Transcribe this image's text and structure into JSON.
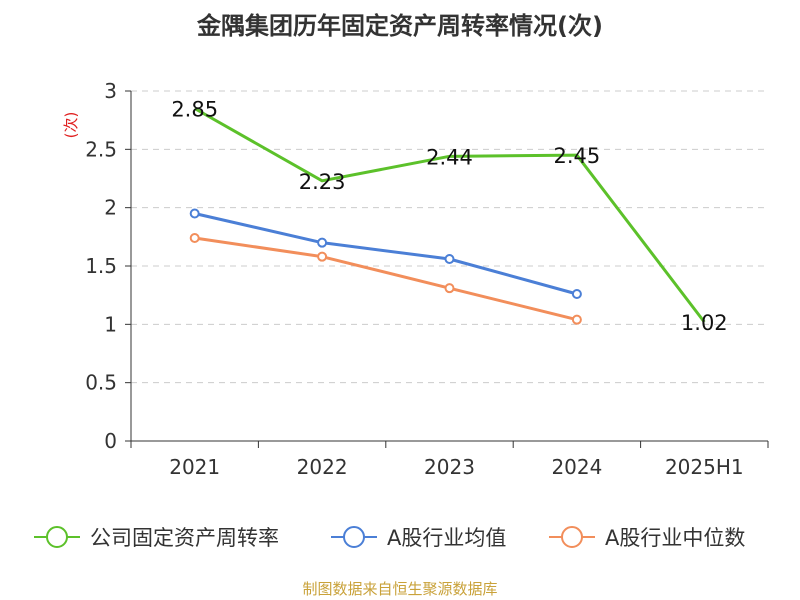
{
  "chart_data": {
    "type": "line",
    "title": "金隅集团历年固定资产周转率情况(次)",
    "ylabel": "(次)",
    "xlabel": "",
    "categories": [
      "2021",
      "2022",
      "2023",
      "2024",
      "2025H1"
    ],
    "ylim": [
      0,
      3
    ],
    "yticks": [
      "0",
      "0.5",
      "1",
      "1.5",
      "2",
      "2.5",
      "3"
    ],
    "grid": true,
    "legend_position": "bottom",
    "series": [
      {
        "name": "公司固定资产周转率",
        "color": "#5cc12a",
        "values": [
          2.85,
          2.23,
          2.44,
          2.45,
          1.02
        ],
        "labels": [
          "2.85",
          "2.23",
          "2.44",
          "2.45",
          "1.02"
        ]
      },
      {
        "name": "A股行业均值",
        "color": "#4b7fd6",
        "values": [
          1.95,
          1.7,
          1.56,
          1.26,
          null
        ]
      },
      {
        "name": "A股行业中位数",
        "color": "#f28e5b",
        "values": [
          1.74,
          1.58,
          1.31,
          1.04,
          null
        ]
      }
    ]
  },
  "footer": {
    "source": "制图数据来自恒生聚源数据库"
  }
}
